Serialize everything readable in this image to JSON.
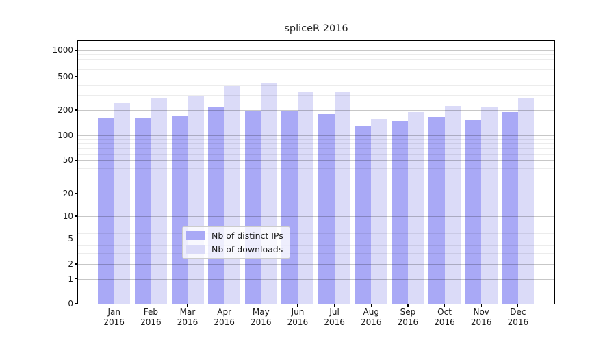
{
  "chart_data": {
    "type": "bar",
    "title": "spliceR 2016",
    "categories": [
      "Jan 2016",
      "Feb 2016",
      "Mar 2016",
      "Apr 2016",
      "May 2016",
      "Jun 2016",
      "Jul 2016",
      "Aug 2016",
      "Sep 2016",
      "Oct 2016",
      "Nov 2016",
      "Dec 2016"
    ],
    "x_tick_line1": [
      "Jan",
      "Feb",
      "Mar",
      "Apr",
      "May",
      "Jun",
      "Jul",
      "Aug",
      "Sep",
      "Oct",
      "Nov",
      "Dec"
    ],
    "x_tick_line2": "2016",
    "series": [
      {
        "name": "Nb of distinct IPs",
        "color": "#a9a9f6",
        "values": [
          161,
          162,
          173,
          218,
          191,
          191,
          183,
          129,
          148,
          166,
          153,
          187
        ]
      },
      {
        "name": "Nb of downloads",
        "color": "#dbdbf8",
        "values": [
          246,
          276,
          297,
          385,
          418,
          321,
          325,
          156,
          187,
          223,
          218,
          275
        ]
      }
    ],
    "y_axis": {
      "scale": "symlog",
      "ticks": [
        0,
        1,
        2,
        5,
        10,
        20,
        50,
        100,
        200,
        500,
        1000
      ],
      "minor_ticks": [
        3,
        4,
        6,
        7,
        8,
        9,
        30,
        40,
        60,
        70,
        80,
        90,
        300,
        400,
        600,
        700,
        800,
        900
      ],
      "ylim": [
        0,
        1150
      ]
    },
    "grid": "both",
    "legend": {
      "position": "lower center"
    },
    "colors": {
      "background": "#ffffff",
      "spine": "#000000",
      "major_grid": "#c9c9c9",
      "minor_grid": "#ececec",
      "text": "#1a1a1a"
    }
  }
}
